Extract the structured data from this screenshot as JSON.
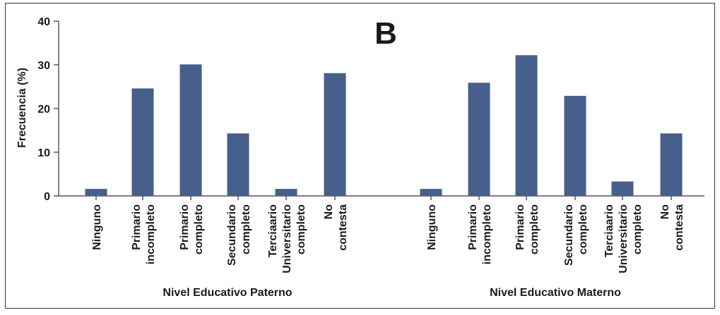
{
  "panel_letter": "B",
  "colors": {
    "bar": "#465f8c",
    "axis": "#333333",
    "frame": "#333333"
  },
  "chart_data": {
    "type": "bar",
    "ylabel": "Frecuencia (%)",
    "ylim": [
      0,
      40
    ],
    "yticks": [
      "0",
      "10",
      "20",
      "30",
      "40"
    ],
    "grid": false,
    "groups": [
      {
        "name": "Nivel Educativo Paterno",
        "categories": [
          [
            "Ninguno"
          ],
          [
            "Primario",
            "incompleto"
          ],
          [
            "Primario",
            "completo"
          ],
          [
            "Secundario",
            "completo"
          ],
          [
            "Terciaario",
            "Universitario",
            "completo"
          ],
          [
            "No",
            "contesta"
          ]
        ],
        "values": [
          1.6,
          24.6,
          30.1,
          14.3,
          1.6,
          28.1
        ]
      },
      {
        "name": "Nivel Educativo Materno",
        "categories": [
          [
            "Ninguno"
          ],
          [
            "Primario",
            "incompleto"
          ],
          [
            "Primario",
            "completo"
          ],
          [
            "Secundario",
            "completo"
          ],
          [
            "Terciaario",
            "Universitario",
            "completo"
          ],
          [
            "No",
            "contesta"
          ]
        ],
        "values": [
          1.6,
          25.9,
          32.2,
          22.9,
          3.3,
          14.3
        ]
      }
    ]
  }
}
